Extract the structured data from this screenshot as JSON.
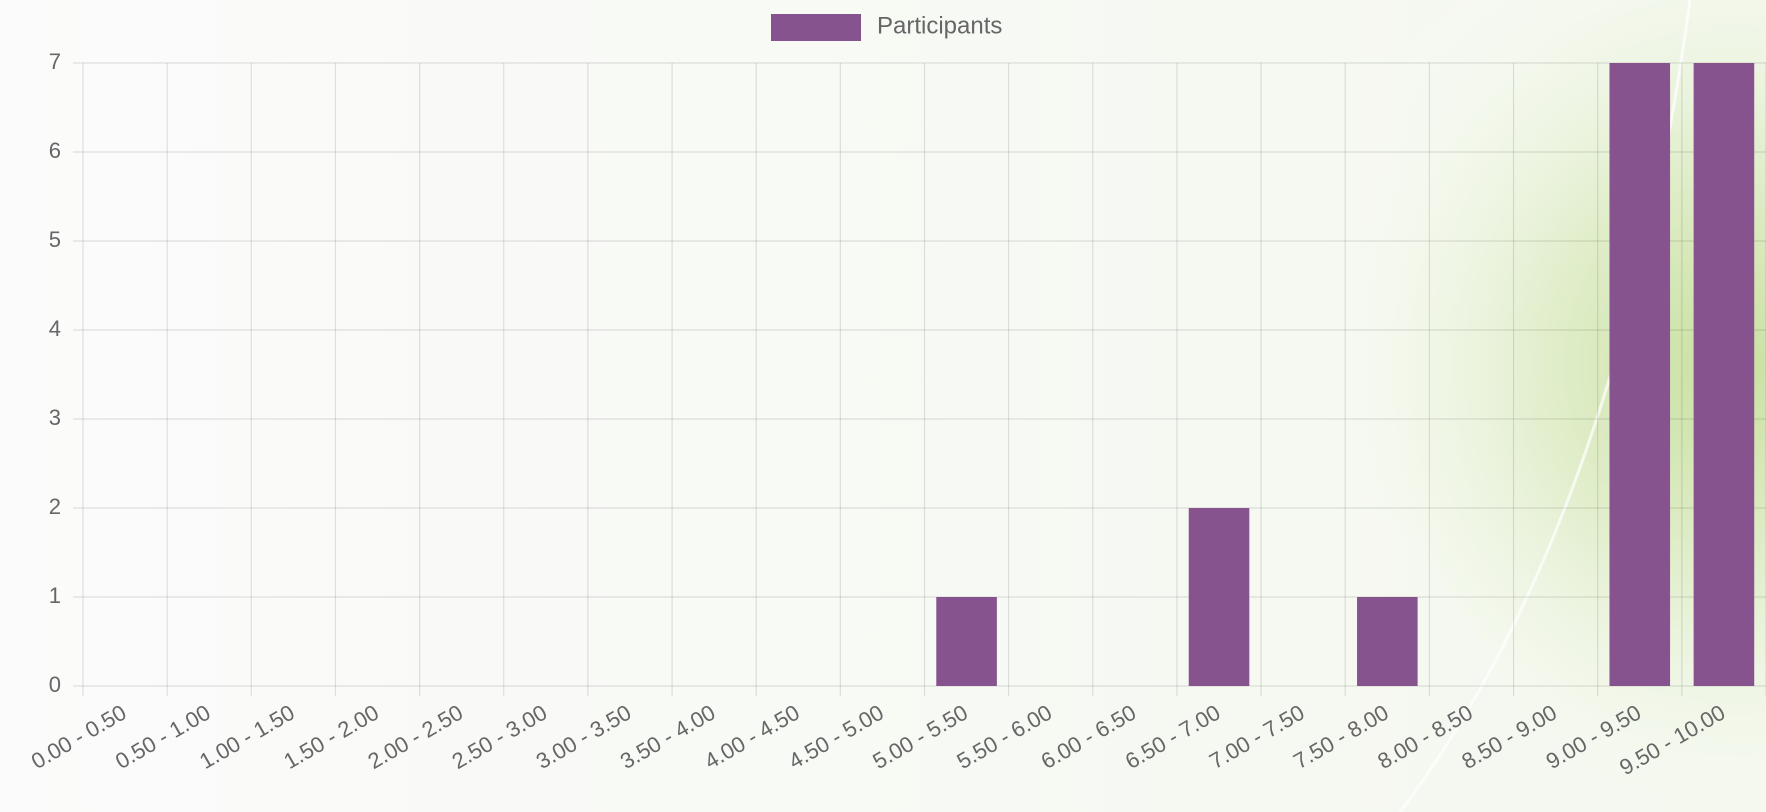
{
  "chart_data": {
    "type": "bar",
    "categories": [
      "0.00 - 0.50",
      "0.50 - 1.00",
      "1.00 - 1.50",
      "1.50 - 2.00",
      "2.00 - 2.50",
      "2.50 - 3.00",
      "3.00 - 3.50",
      "3.50 - 4.00",
      "4.00 - 4.50",
      "4.50 - 5.00",
      "5.00 - 5.50",
      "5.50 - 6.00",
      "6.00 - 6.50",
      "6.50 - 7.00",
      "7.00 - 7.50",
      "7.50 - 8.00",
      "8.00 - 8.50",
      "8.50 - 9.00",
      "9.00 - 9.50",
      "9.50 - 10.00"
    ],
    "series": [
      {
        "name": "Participants",
        "color": "#86538f",
        "values": [
          0,
          0,
          0,
          0,
          0,
          0,
          0,
          0,
          0,
          0,
          1,
          0,
          0,
          2,
          0,
          1,
          0,
          0,
          7,
          7
        ]
      }
    ],
    "ylim": [
      0,
      7
    ],
    "yticks": [
      0,
      1,
      2,
      3,
      4,
      5,
      6,
      7
    ],
    "grid": true,
    "legend": "top"
  }
}
